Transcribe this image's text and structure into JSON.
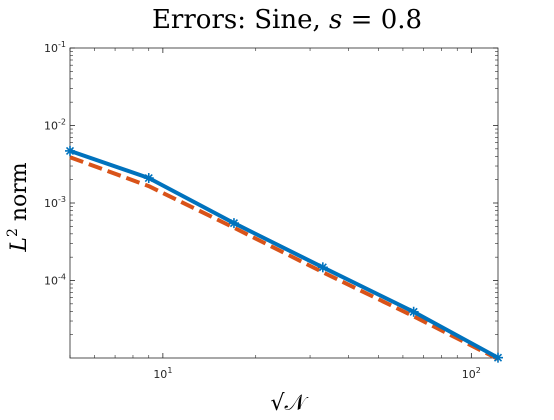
{
  "chart_data": {
    "type": "line",
    "title": "Errors: Sine, s = 0.8",
    "title_parts": {
      "prefix": "Errors: Sine, ",
      "var": "s",
      "rest": " = 0.8"
    },
    "xlabel": "√𝒩",
    "ylabel": "L² norm",
    "ylabel_parts": {
      "var": "L",
      "exp": "2",
      "rest": " norm"
    },
    "xscale": "log",
    "yscale": "log",
    "xlim": [
      5,
      122
    ],
    "ylim": [
      1e-05,
      0.1
    ],
    "xticks": [
      {
        "value": 10,
        "base": "10",
        "exp": "1"
      },
      {
        "value": 100,
        "base": "10",
        "exp": "2"
      }
    ],
    "yticks": [
      {
        "value": 0.1,
        "base": "10",
        "exp": "-1"
      },
      {
        "value": 0.01,
        "base": "10",
        "exp": "-2"
      },
      {
        "value": 0.001,
        "base": "10",
        "exp": "-3"
      },
      {
        "value": 0.0001,
        "base": "10",
        "exp": "-4"
      }
    ],
    "grid": false,
    "box": true,
    "series": [
      {
        "color": "#0072BD",
        "style": "solid",
        "marker": "star",
        "x": [
          5,
          9,
          17,
          33,
          65,
          122
        ],
        "y": [
          0.0047,
          0.0021,
          0.00055,
          0.000148,
          3.95e-05,
          1.01e-05
        ]
      },
      {
        "color": "#D95319",
        "style": "dashed",
        "marker": "none",
        "x": [
          5,
          9,
          17,
          33,
          65,
          122
        ],
        "y": [
          0.0039,
          0.00165,
          0.00048,
          0.000128,
          3.45e-05,
          9.7e-06
        ]
      }
    ]
  }
}
